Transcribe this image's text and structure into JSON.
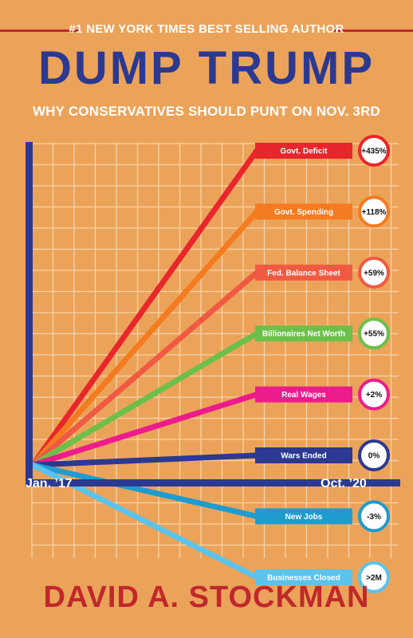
{
  "cover": {
    "tagline": "#1 NEW YORK TIMES BEST SELLING AUTHOR",
    "title": "DUMP TRUMP",
    "subtitle": "WHY CONSERVATIVES SHOULD PUNT ON NOV. 3RD",
    "author": "DAVID A. STOCKMAN",
    "colors": {
      "background": "#eba35a",
      "title": "#2b3990",
      "author": "#c0282c",
      "axis": "#2b3990"
    }
  },
  "chart_data": {
    "type": "line",
    "x_start_label": "Jan. ’17",
    "x_end_label": "Oct. ’20",
    "series": [
      {
        "name": "Govt. Deficit",
        "value": "+435%",
        "color": "#e8262b"
      },
      {
        "name": "Govt. Spending",
        "value": "+118%",
        "color": "#f47b20"
      },
      {
        "name": "Fed. Balance Sheet",
        "value": "+59%",
        "color": "#f05a42"
      },
      {
        "name": "Billionaires Net Worth",
        "value": "+55%",
        "color": "#6cc04a"
      },
      {
        "name": "Real Wages",
        "value": "+2%",
        "color": "#ec1c8c"
      },
      {
        "name": "Wars Ended",
        "value": "0%",
        "color": "#2b3990"
      },
      {
        "name": "New Jobs",
        "value": "-3%",
        "color": "#1f9bcf"
      },
      {
        "name": "Businesses Closed",
        "value": ">2M",
        "color": "#5bc3ec"
      }
    ]
  }
}
